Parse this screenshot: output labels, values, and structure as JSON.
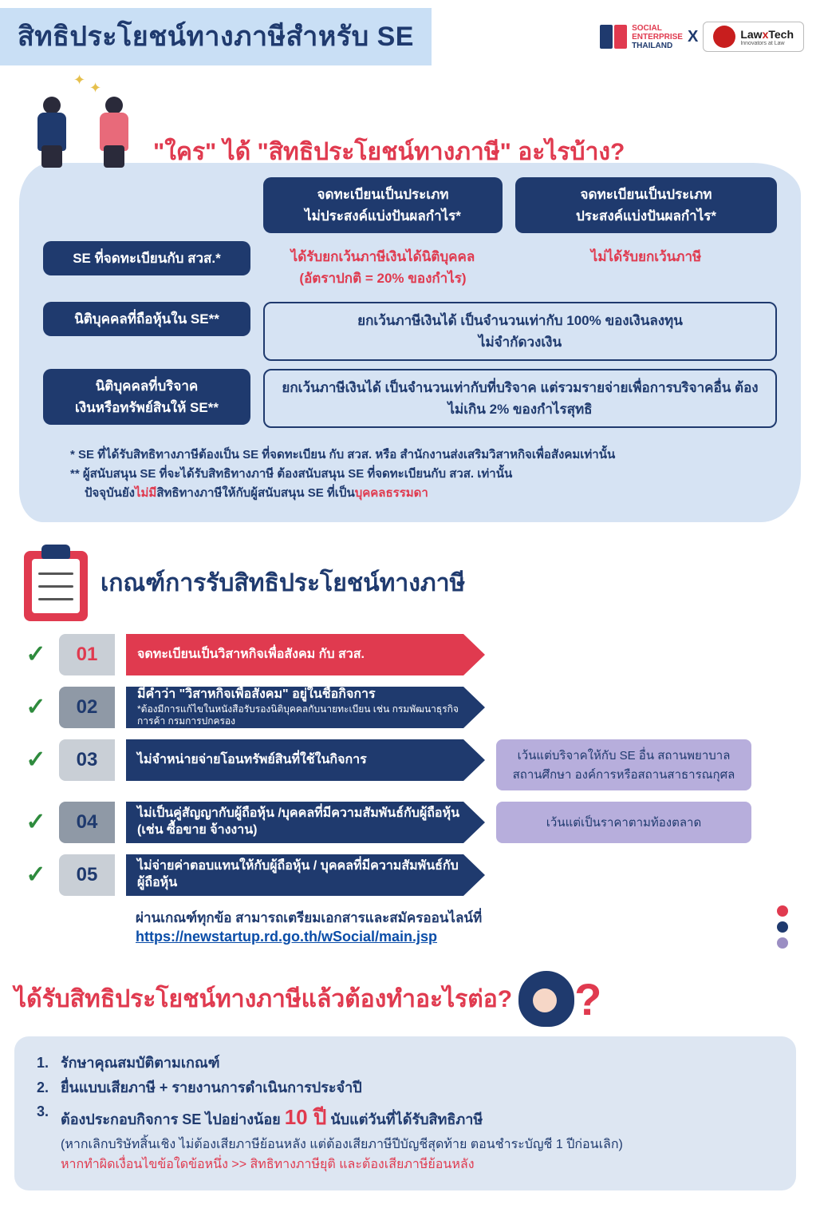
{
  "colors": {
    "navy": "#1f3a6e",
    "red": "#e03a4f",
    "lightblue_band": "#c9dff5",
    "cloud": "#d6e3f3",
    "grey_num": "#c9cfd6",
    "grey_dark": "#8f99a6",
    "purple": "#9b8ec3",
    "purple_box": "#b7aedc",
    "green_check": "#2e8b3d",
    "link_blue": "#0a4da8",
    "steps_bg": "#dde6f2",
    "se_red_text": "#d63447",
    "se_blue_text": "#1a3d7c"
  },
  "header": {
    "title": "สิทธิประโยชน์ทางภาษีสำหรับ SE",
    "logo_se_line1": "SOCIAL",
    "logo_se_line2": "ENTERPRISE",
    "logo_se_line3": "THAILAND",
    "logo_x": "X",
    "logo_lt_main": "Law Tech",
    "logo_lt_x": "x",
    "logo_lt_sub": "Innovators at Law"
  },
  "section1": {
    "question": "\"ใคร\" ได้ \"สิทธิประโยชน์ทางภาษี\" อะไรบ้าง?",
    "col_hdr_a": "จดทะเบียนเป็นประเภท\nไม่ประสงค์แบ่งปันผลกำไร*",
    "col_hdr_b": "จดทะเบียนเป็นประเภท\nประสงค์แบ่งปันผลกำไร*",
    "row1_label": "SE ที่จดทะเบียนกับ สวส.*",
    "row1_a": "ได้รับยกเว้นภาษีเงินได้นิติบุคคล\n(อัตราปกติ = 20% ของกำไร)",
    "row1_b": "ไม่ได้รับยกเว้นภาษี",
    "row2_label": "นิติบุคคลที่ถือหุ้นใน SE**",
    "row2_box": "ยกเว้นภาษีเงินได้ เป็นจำนวนเท่ากับ 100% ของเงินลงทุน\nไม่จำกัดวงเงิน",
    "row3_label": "นิติบุคคลที่บริจาค\nเงินหรือทรัพย์สินให้ SE**",
    "row3_box": "ยกเว้นภาษีเงินได้ เป็นจำนวนเท่ากับที่บริจาค แต่รวมรายจ่ายเพื่อการบริจาคอื่น ต้องไม่เกิน 2% ของกำไรสุทธิ",
    "fn1_pre": "* SE ที่ได้รับสิทธิทางภาษีต้องเป็น SE ที่จดทะเบียน กับ สวส. หรือ สำนักงานส่งเสริมวิสาหกิจเพื่อสังคมเท่านั้น",
    "fn2_pre": "** ผู้สนับสนุน SE ที่จะได้รับสิทธิทางภาษี ต้องสนับสนุน SE ที่จดทะเบียนกับ สวส. เท่านั้น",
    "fn3_pre": "ปัจจุบันยัง",
    "fn3_red1": "ไม่มี",
    "fn3_mid": "สิทธิทางภาษีให้กับผู้สนับสนุน SE ที่เป็น",
    "fn3_red2": "บุคคลธรรมดา"
  },
  "section2": {
    "title": "เกณฑ์การรับสิทธิประโยชน์ทางภาษี",
    "items": [
      {
        "num": "01",
        "text": "จดทะเบียนเป็นวิสาหกิจเพื่อสังคม กับ สวส.",
        "sub": "",
        "arrow_color": "#e03a4f",
        "num_bg": "#c9cfd6",
        "note": null,
        "note_bg": null
      },
      {
        "num": "02",
        "text": "มีคำว่า \"วิสาหกิจเพื่อสังคม\" อยู่ในชื่อกิจการ",
        "sub": "*ต้องมีการแก้ไขในหนังสือรับรองนิติบุคคลกับนายทะเบียน เช่น กรมพัฒนาธุรกิจการค้า กรมการปกครอง",
        "arrow_color": "#1f3a6e",
        "num_bg": "#8f99a6",
        "note": null,
        "note_bg": null
      },
      {
        "num": "03",
        "text": "ไม่จำหน่ายจ่ายโอนทรัพย์สินที่ใช้ในกิจการ",
        "sub": "",
        "arrow_color": "#1f3a6e",
        "num_bg": "#c9cfd6",
        "note": "เว้นแต่บริจาคให้กับ SE อื่น สถานพยาบาล สถานศึกษา องค์การหรือสถานสาธารณกุศล",
        "note_bg": "#b7aedc"
      },
      {
        "num": "04",
        "text": "ไม่เป็นคู่สัญญากับผู้ถือหุ้น /บุคคลที่มีความสัมพันธ์กับผู้ถือหุ้น (เช่น ซื้อขาย จ้างงาน)",
        "sub": "",
        "arrow_color": "#1f3a6e",
        "num_bg": "#8f99a6",
        "note": "เว้นแต่เป็นราคาตามท้องตลาด",
        "note_bg": "#b7aedc"
      },
      {
        "num": "05",
        "text": "ไม่จ่ายค่าตอบแทนให้กับผู้ถือหุ้น / บุคคลที่มีความสัมพันธ์กับผู้ถือหุ้น",
        "sub": "",
        "arrow_color": "#1f3a6e",
        "num_bg": "#c9cfd6",
        "note": null,
        "note_bg": null
      }
    ],
    "apply_line": "ผ่านเกณฑ์ทุกข้อ สามารถเตรียมเอกสารและสมัครออนไลน์ที่",
    "apply_link": "https://newstartup.rd.go.th/wSocial/main.jsp",
    "legend_colors": [
      "#e03a4f",
      "#1f3a6e",
      "#9b8ec3"
    ]
  },
  "section3": {
    "question": "ได้รับสิทธิประโยชน์ทางภาษีแล้วต้องทำอะไรต่อ?",
    "qmark": "?",
    "step1": "รักษาคุณสมบัติตามเกณฑ์",
    "step2": "ยื่นแบบเสียภาษี + รายงานการดำเนินการประจำปี",
    "step3_pre": "ต้องประกอบกิจการ SE ไปอย่างน้อย ",
    "step3_ten": "10 ปี",
    "step3_post": " นับแต่วันที่ได้รับสิทธิภาษี",
    "step3_paren": "(หากเลิกบริษัทสิ้นเชิง ไม่ต้องเสียภาษีย้อนหลัง แต่ต้องเสียภาษีปีบัญชีสุดท้าย ตอนชำระบัญชี 1 ปีก่อนเลิก)",
    "warn": "หากทำผิดเงื่อนไขข้อใดข้อหนึ่ง >> สิทธิทางภาษียุติ และต้องเสียภาษีย้อนหลัง"
  }
}
